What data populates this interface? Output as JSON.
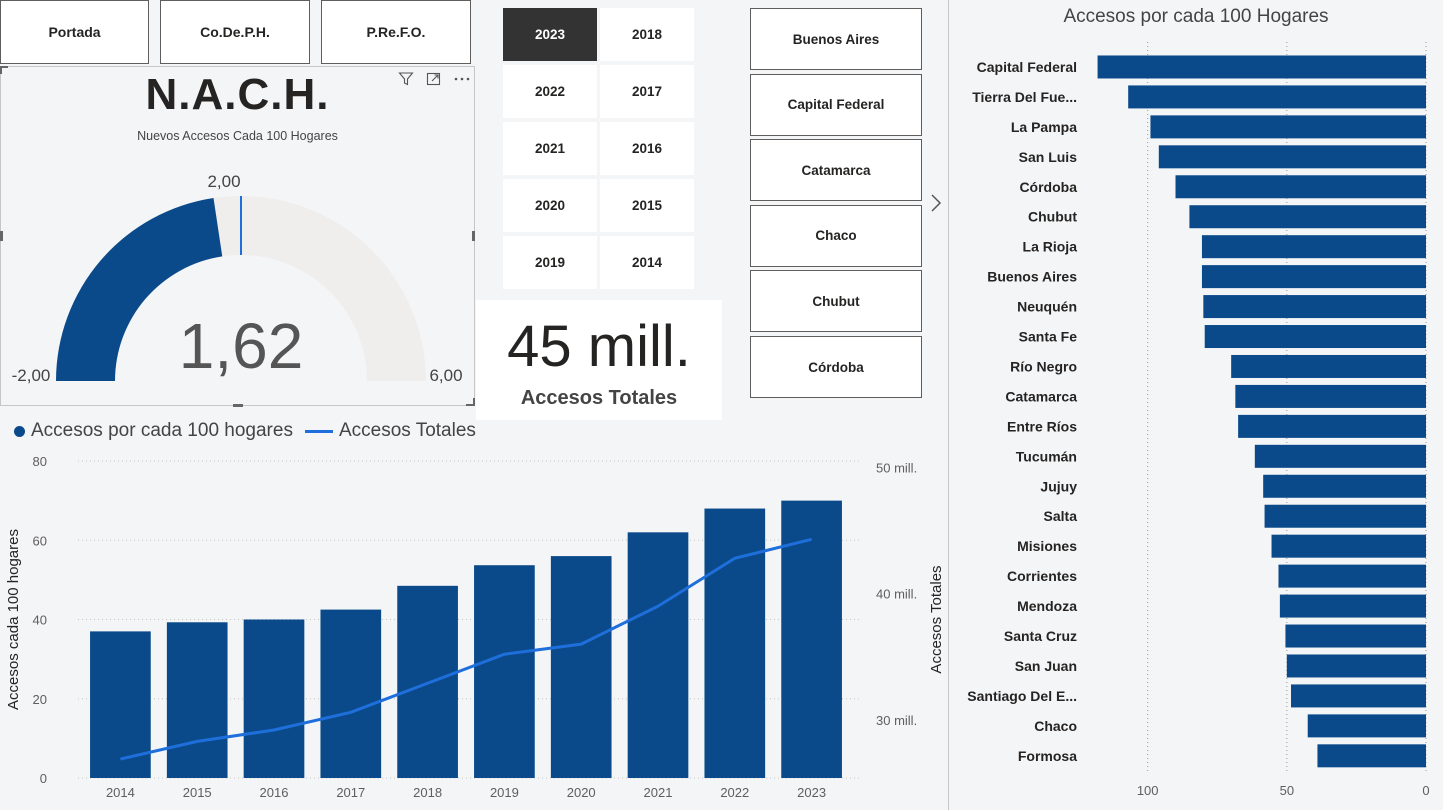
{
  "nav": {
    "portada": "Portada",
    "codeph": "Co.De.P.H.",
    "prefo": "P.Re.F.O."
  },
  "gauge": {
    "title": "N.A.C.H.",
    "subtitle": "Nuevos Accesos Cada 100 Hogares",
    "value": 1.62,
    "value_label": "1,62",
    "min": -2,
    "min_label": "-2,00",
    "max": 6,
    "max_label": "6,00",
    "target": 2,
    "target_label": "2,00",
    "fill_color": "#0b4a8a",
    "track_color": "#f0eeec"
  },
  "visual_header": {
    "filter_icon": "filter-icon",
    "focus_icon": "focus-mode-icon",
    "more_icon": "more-options-icon"
  },
  "years": {
    "selected": "2023",
    "items": [
      "2023",
      "2018",
      "2022",
      "2017",
      "2021",
      "2016",
      "2020",
      "2015",
      "2019",
      "2014"
    ]
  },
  "kpi": {
    "value": "45 mill.",
    "label": "Accesos Totales"
  },
  "provinces": {
    "items": [
      "Buenos Aires",
      "Capital Federal",
      "Catamarca",
      "Chaco",
      "Chubut",
      "Córdoba"
    ],
    "next_icon": "chevron-right-icon"
  },
  "combo": {
    "legend_bar": "Accesos por cada 100 hogares",
    "legend_line": "Accesos Totales"
  },
  "chart_data": [
    {
      "type": "bar+line",
      "categories": [
        "2014",
        "2015",
        "2016",
        "2017",
        "2018",
        "2019",
        "2020",
        "2021",
        "2022",
        "2023"
      ],
      "series": [
        {
          "name": "Accesos por cada 100 hogares",
          "kind": "bar",
          "axis": "left",
          "values": [
            37,
            39.3,
            40,
            42.5,
            48.5,
            53.7,
            56,
            62,
            68,
            70
          ]
        },
        {
          "name": "Accesos Totales",
          "kind": "line",
          "axis": "right",
          "values": [
            26.9,
            28.3,
            29.2,
            30.6,
            32.9,
            35.2,
            36.0,
            39.0,
            42.8,
            44.3
          ]
        }
      ],
      "ylabel": "Accesos cada 100 hogares",
      "y2label": "Accesos Totales",
      "ylim": [
        0,
        80
      ],
      "yticks": [
        0,
        20,
        40,
        60,
        80
      ],
      "y2lim": [
        25.4,
        50.5
      ],
      "y2ticks": [
        30,
        40,
        50
      ],
      "y2tick_labels": [
        "30 mill.",
        "40 mill.",
        "50 mill."
      ],
      "bar_color": "#0b4a8a",
      "line_color": "#1e6fdb",
      "grid": true
    },
    {
      "type": "bar",
      "orientation": "horizontal",
      "title": "Accesos por cada 100 Hogares",
      "categories": [
        "Capital Federal",
        "Tierra Del Fue...",
        "La Pampa",
        "San Luis",
        "Córdoba",
        "Chubut",
        "La Rioja",
        "Buenos Aires",
        "Neuquén",
        "Santa Fe",
        "Río Negro",
        "Catamarca",
        "Entre Ríos",
        "Tucumán",
        "Jujuy",
        "Salta",
        "Misiones",
        "Corrientes",
        "Mendoza",
        "Santa Cruz",
        "San Juan",
        "Santiago Del E...",
        "Chaco",
        "Formosa"
      ],
      "values": [
        118,
        107,
        99,
        96,
        90,
        85,
        80.5,
        80.5,
        80,
        79.5,
        70,
        68.5,
        67.5,
        61.5,
        58.5,
        58,
        55.5,
        53,
        52.5,
        50.5,
        50,
        48.5,
        42.5,
        39
      ],
      "xlim": [
        0,
        120
      ],
      "xticks": [
        0,
        50,
        100
      ],
      "x_reversed": true,
      "bar_color": "#0b4a8a",
      "grid": true
    }
  ]
}
